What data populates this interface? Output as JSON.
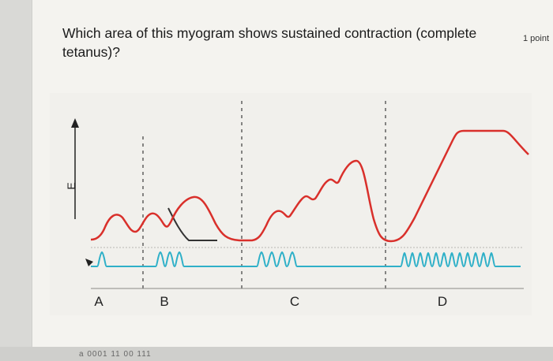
{
  "question": {
    "text_line1": "Which area of this myogram shows sustained contraction (complete",
    "text_line2": "tetanus)?",
    "points": "1 point"
  },
  "chart_data": {
    "type": "line",
    "axis_label": "E",
    "region_labels": [
      "A",
      "B",
      "C",
      "D"
    ],
    "series": [
      {
        "values": "muscle-tension",
        "color": "#d9302b"
      },
      {
        "values": "stimulus",
        "color": "#2fb0c8"
      },
      {
        "values": "relaxation",
        "color": "#333333"
      }
    ]
  },
  "footer": {
    "text": "a 0001 11 00 111"
  }
}
